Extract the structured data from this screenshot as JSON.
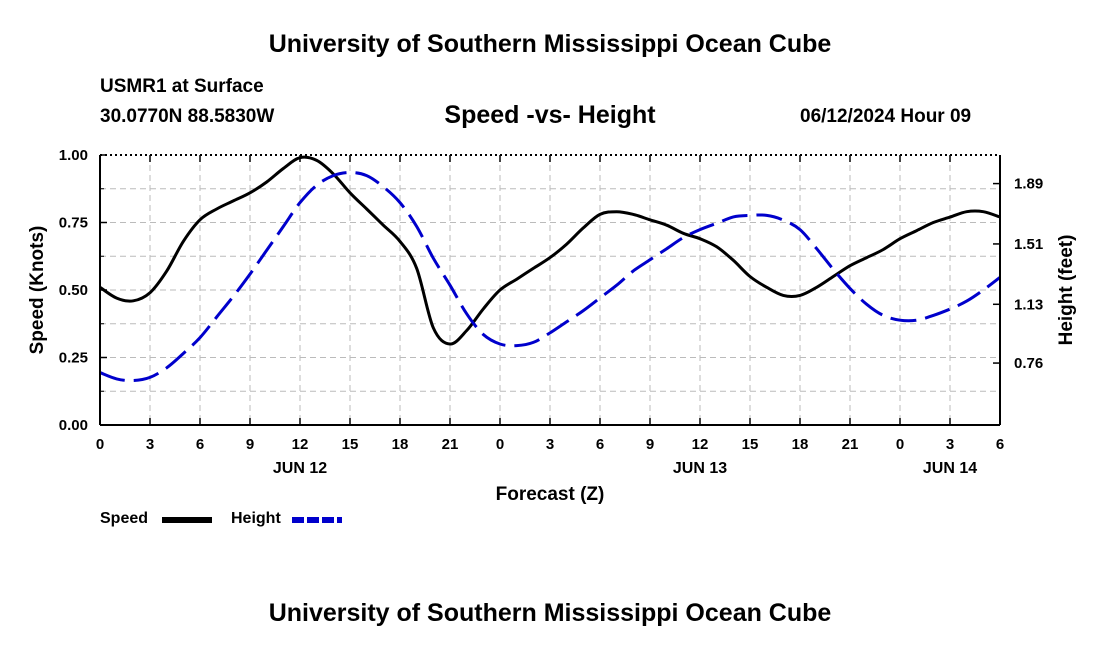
{
  "header": {
    "title": "University of Southern Mississippi Ocean Cube",
    "station": "USMR1 at Surface",
    "coords": "30.0770N  88.5830W",
    "chart_title": "Speed -vs- Height",
    "date": "06/12/2024 Hour 09"
  },
  "footer": {
    "title": "University of Southern Mississippi Ocean Cube"
  },
  "legend": {
    "speed": "Speed",
    "height": "Height"
  },
  "colors": {
    "speed": "#000000",
    "height": "#0000cc",
    "grid": "#bbbbbb"
  },
  "chart_data": {
    "type": "line",
    "title": "Speed -vs- Height",
    "xlabel": "Forecast (Z)",
    "ylabel_left": "Speed (Knots)",
    "ylabel_right": "Height (feet)",
    "xlim": [
      0,
      54
    ],
    "ylim_left": [
      0,
      1
    ],
    "ylim_right": [
      0.37,
      2.07
    ],
    "grid": true,
    "x_ticks": [
      0,
      3,
      6,
      9,
      12,
      15,
      18,
      21,
      24,
      27,
      30,
      33,
      36,
      39,
      42,
      45,
      48,
      51,
      54
    ],
    "x_tick_labels": [
      "0",
      "3",
      "6",
      "9",
      "12",
      "15",
      "18",
      "21",
      "0",
      "3",
      "6",
      "9",
      "12",
      "15",
      "18",
      "21",
      "0",
      "3",
      "6"
    ],
    "day_labels": [
      {
        "x": 12,
        "label": "JUN 12"
      },
      {
        "x": 36,
        "label": "JUN 13"
      },
      {
        "x": 51,
        "label": "JUN 14"
      }
    ],
    "y_left_ticks": [
      0,
      0.25,
      0.5,
      0.75,
      1.0
    ],
    "y_left_tick_labels": [
      "0.00",
      "0.25",
      "0.50",
      "0.75",
      "1.00"
    ],
    "y_right_ticks": [
      0.76,
      1.13,
      1.51,
      1.89
    ],
    "y_right_tick_labels": [
      "0.76",
      "1.13",
      "1.51",
      "1.89"
    ],
    "series": [
      {
        "name": "Speed",
        "axis": "left",
        "style": "solid",
        "x": [
          0,
          1,
          2,
          3,
          4,
          5,
          6,
          7,
          8,
          9,
          10,
          11,
          12,
          13,
          14,
          15,
          16,
          17,
          18,
          19,
          20,
          21,
          22,
          23,
          24,
          25,
          26,
          27,
          28,
          29,
          30,
          31,
          32,
          33,
          34,
          35,
          36,
          37,
          38,
          39,
          40,
          41,
          42,
          43,
          44,
          45,
          46,
          47,
          48,
          49,
          50,
          51,
          52,
          53,
          54
        ],
        "values": [
          0.51,
          0.47,
          0.46,
          0.49,
          0.57,
          0.68,
          0.76,
          0.8,
          0.83,
          0.86,
          0.9,
          0.95,
          0.99,
          0.98,
          0.93,
          0.86,
          0.8,
          0.74,
          0.68,
          0.58,
          0.36,
          0.3,
          0.35,
          0.43,
          0.5,
          0.54,
          0.58,
          0.62,
          0.67,
          0.73,
          0.78,
          0.79,
          0.78,
          0.76,
          0.74,
          0.71,
          0.69,
          0.66,
          0.61,
          0.55,
          0.51,
          0.48,
          0.48,
          0.51,
          0.55,
          0.59,
          0.62,
          0.65,
          0.69,
          0.72,
          0.75,
          0.77,
          0.79,
          0.79,
          0.77
        ]
      },
      {
        "name": "Height",
        "axis": "right",
        "style": "dashed",
        "x": [
          0,
          1,
          2,
          3,
          4,
          5,
          6,
          7,
          8,
          9,
          10,
          11,
          12,
          13,
          14,
          15,
          16,
          17,
          18,
          19,
          20,
          21,
          22,
          23,
          24,
          25,
          26,
          27,
          28,
          29,
          30,
          31,
          32,
          33,
          34,
          35,
          36,
          37,
          38,
          39,
          40,
          41,
          42,
          43,
          44,
          45,
          46,
          47,
          48,
          49,
          50,
          51,
          52,
          53,
          54
        ],
        "values": [
          0.7,
          0.66,
          0.65,
          0.67,
          0.73,
          0.82,
          0.92,
          1.05,
          1.18,
          1.32,
          1.47,
          1.62,
          1.77,
          1.88,
          1.94,
          1.96,
          1.94,
          1.87,
          1.77,
          1.62,
          1.42,
          1.25,
          1.07,
          0.94,
          0.88,
          0.87,
          0.89,
          0.95,
          1.02,
          1.09,
          1.17,
          1.25,
          1.34,
          1.41,
          1.48,
          1.55,
          1.6,
          1.64,
          1.68,
          1.69,
          1.69,
          1.66,
          1.6,
          1.48,
          1.35,
          1.23,
          1.13,
          1.06,
          1.03,
          1.03,
          1.06,
          1.1,
          1.15,
          1.22,
          1.3
        ]
      }
    ]
  }
}
